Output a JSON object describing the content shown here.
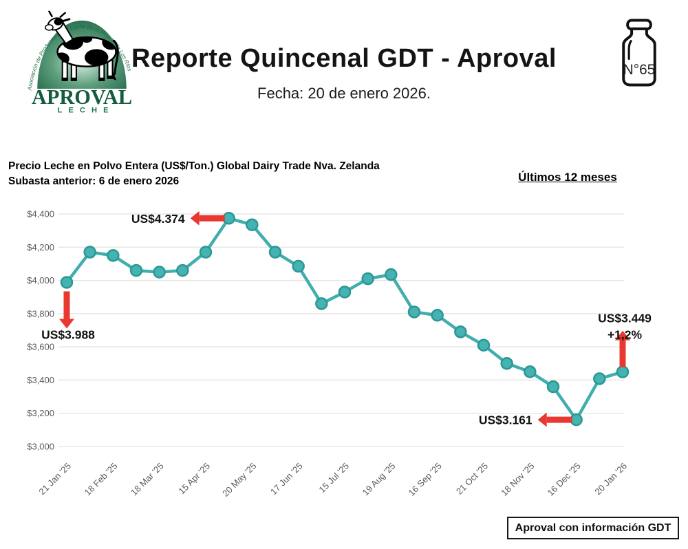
{
  "header": {
    "logo": {
      "arc_text": "Asociación de Productores de Leche de la Región de Los Ríos",
      "brand": "APROVAL",
      "sub_brand": "LECHE",
      "green": "#1C6B45"
    },
    "title": "Reporte Quincenal GDT - Aproval",
    "date_line": "Fecha: 20 de enero 2026.",
    "edition_number": "N°65"
  },
  "chart_header": {
    "title_line1": "Precio Leche en Polvo Entera (US$/Ton.) Global Dairy Trade Nva. Zelanda",
    "title_line2": "Subasta anterior: 6 de enero 2026",
    "period_label": "Últimos 12 meses"
  },
  "chart_data": {
    "type": "line",
    "title": "Precio Leche en Polvo Entera (US$/Ton.) Global Dairy Trade Nva. Zelanda",
    "x_tick_labels": [
      "21 Jan '25",
      "18 Feb '25",
      "18 Mar '25",
      "15 Apr '25",
      "20 May '25",
      "17 Jun '25",
      "15 Jul '25",
      "19 Aug '25",
      "16 Sep '25",
      "21 Oct '25",
      "18 Nov '25",
      "16 Dec '25",
      "20 Jan '26"
    ],
    "values": [
      3988,
      4170,
      4150,
      4060,
      4050,
      4060,
      4170,
      4374,
      4335,
      4170,
      4085,
      3860,
      3930,
      4010,
      4035,
      3810,
      3790,
      3690,
      3610,
      3500,
      3450,
      3360,
      3161,
      3408,
      3449
    ],
    "ylim": [
      3000,
      4400
    ],
    "grid": true,
    "legend": "none",
    "y_ticks": [
      {
        "value": 4400,
        "label": "$4,400"
      },
      {
        "value": 4200,
        "label": "$4,200"
      },
      {
        "value": 4000,
        "label": "$4,000"
      },
      {
        "value": 3800,
        "label": "$3,800"
      },
      {
        "value": 3600,
        "label": "$3,600"
      },
      {
        "value": 3400,
        "label": "$3,400"
      },
      {
        "value": 3200,
        "label": "$3,200"
      },
      {
        "value": 3000,
        "label": "$3,000"
      }
    ],
    "annotations": [
      {
        "text": "US$3.988",
        "point_index": 0,
        "arrow": "down"
      },
      {
        "text": "US$4.374",
        "point_index": 7,
        "arrow": "left"
      },
      {
        "text": "US$3.161",
        "point_index": 22,
        "arrow": "left"
      },
      {
        "text": "US$3.449",
        "text2": "+1,2%",
        "point_index": 24,
        "arrow": "up"
      }
    ],
    "line_color": "#3FAEAD",
    "marker_fill": "#44B3B1",
    "marker_stroke": "#2C9795",
    "arrow_color": "#E8382F",
    "grid_color": "#E2E2E2",
    "axis_text_color": "#595959",
    "annotation_text_color": "#111111"
  },
  "footer": {
    "source_label": "Aproval con información GDT"
  }
}
